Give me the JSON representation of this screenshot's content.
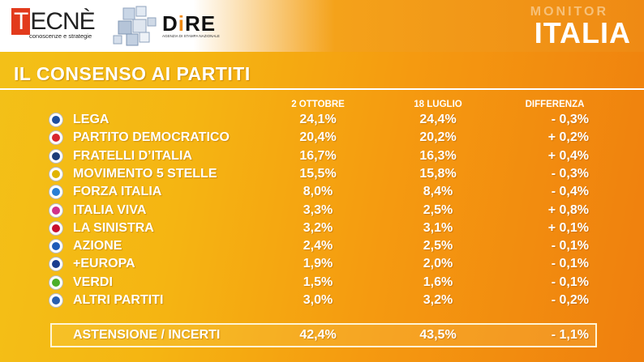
{
  "header": {
    "tecne_brand": "TECNÈ",
    "tecne_tagline": "conoscenze e strategie",
    "dire_brand": "DIRE",
    "dire_tagline": "AGENZIA DI STAMPA NAZIONALE",
    "monitor_label": "MONITOR",
    "country_label": "ITALIA"
  },
  "title": "IL CONSENSO AI PARTITI",
  "chart_data": {
    "type": "table",
    "columns": [
      "2 OTTOBRE",
      "18 LUGLIO",
      "DIFFERENZA"
    ],
    "rows": [
      {
        "party": "LEGA",
        "oct2": "24,1%",
        "jul18": "24,4%",
        "diff": "- 0,3%",
        "logo": "#1f4f9e"
      },
      {
        "party": "PARTITO DEMOCRATICO",
        "oct2": "20,4%",
        "jul18": "20,2%",
        "diff": "+ 0,2%",
        "logo": "#d8262e"
      },
      {
        "party": "FRATELLI D’ITALIA",
        "oct2": "16,7%",
        "jul18": "16,3%",
        "diff": "+ 0,4%",
        "logo": "#1c3c78"
      },
      {
        "party": "MOVIMENTO 5 STELLE",
        "oct2": "15,5%",
        "jul18": "15,8%",
        "diff": "- 0,3%",
        "logo": "#e0b400"
      },
      {
        "party": "FORZA ITALIA",
        "oct2": "8,0%",
        "jul18": "8,4%",
        "diff": "- 0,4%",
        "logo": "#2a7fd4"
      },
      {
        "party": "ITALIA VIVA",
        "oct2": "3,3%",
        "jul18": "2,5%",
        "diff": "+ 0,8%",
        "logo": "#d1338a"
      },
      {
        "party": "LA SINISTRA",
        "oct2": "3,2%",
        "jul18": "3,1%",
        "diff": "+ 0,1%",
        "logo": "#c8102e"
      },
      {
        "party": "AZIONE",
        "oct2": "2,4%",
        "jul18": "2,5%",
        "diff": "- 0,1%",
        "logo": "#1e5bb8"
      },
      {
        "party": "+EUROPA",
        "oct2": "1,9%",
        "jul18": "2,0%",
        "diff": "- 0,1%",
        "logo": "#1a3d8f"
      },
      {
        "party": "VERDI",
        "oct2": "1,5%",
        "jul18": "1,6%",
        "diff": "- 0,1%",
        "logo": "#4caf2a"
      },
      {
        "party": "ALTRI PARTITI",
        "oct2": "3,0%",
        "jul18": "3,2%",
        "diff": "- 0,2%",
        "logo": "#2a5fb0"
      }
    ],
    "abstention": {
      "label": "ASTENSIONE / INCERTI",
      "oct2": "42,4%",
      "jul18": "43,5%",
      "diff": "- 1,1%"
    }
  }
}
